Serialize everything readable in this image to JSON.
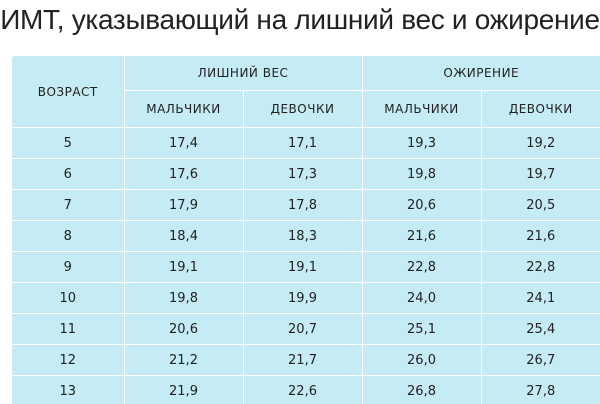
{
  "title": "ИМТ, указывающий на лишний вес и ожирение",
  "table": {
    "age_header": "ВОЗРАСТ",
    "groups": [
      "ЛИШНИЙ ВЕС",
      "ОЖИРЕНИЕ"
    ],
    "subheaders": [
      "МАЛЬЧИКИ",
      "ДЕВОЧКИ",
      "МАЛЬЧИКИ",
      "ДЕВОЧКИ"
    ],
    "rows": [
      [
        "5",
        "17,4",
        "17,1",
        "19,3",
        "19,2"
      ],
      [
        "6",
        "17,6",
        "17,3",
        "19,8",
        "19,7"
      ],
      [
        "7",
        "17,9",
        "17,8",
        "20,6",
        "20,5"
      ],
      [
        "8",
        "18,4",
        "18,3",
        "21,6",
        "21,6"
      ],
      [
        "9",
        "19,1",
        "19,1",
        "22,8",
        "22,8"
      ],
      [
        "10",
        "19,8",
        "19,9",
        "24,0",
        "24,1"
      ],
      [
        "11",
        "20,6",
        "20,7",
        "25,1",
        "25,4"
      ],
      [
        "12",
        "21,2",
        "21,7",
        "26,0",
        "26,7"
      ],
      [
        "13",
        "21,9",
        "22,6",
        "26,8",
        "27,8"
      ]
    ]
  },
  "colors": {
    "table_bg": "#c5ebf4",
    "grid_lines": "#ffffff",
    "text": "#222222"
  }
}
